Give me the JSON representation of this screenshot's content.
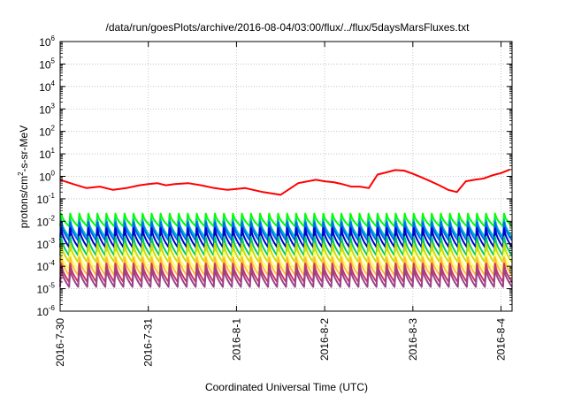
{
  "chart_data": {
    "type": "line",
    "title": "/data/run/goesPlots/archive/2016-08-04/03:00/flux/../flux/5daysMarsFluxes.txt",
    "xlabel": "Coordinated Universal Time (UTC)",
    "ylabel_prefix": "protons/cm",
    "ylabel_sup": "2",
    "ylabel_suffix": "-s-sr-MeV",
    "y_scale": "log",
    "ylim_exponent": [
      -6,
      6
    ],
    "y_tick_base": "10",
    "y_tick_exponents": [
      "-6",
      "-5",
      "-4",
      "-3",
      "-2",
      "-1",
      "0",
      "1",
      "2",
      "3",
      "4",
      "5",
      "6"
    ],
    "xlim": [
      "2016-07-30 00:00",
      "2016-08-04 03:00"
    ],
    "x_ticks": [
      "2016-7-30",
      "2016-7-31",
      "2016-8-1",
      "2016-8-2",
      "2016-8-3",
      "2016-8-4"
    ],
    "grid": true,
    "legend": "none",
    "sawtooth": {
      "teeth": 50,
      "rise_fraction": 0.12
    },
    "series": [
      {
        "color": "#ff0000",
        "style": "piecewise",
        "x_days": [
          0,
          0.15,
          0.3,
          0.45,
          0.6,
          0.75,
          0.9,
          1.0,
          1.1,
          1.2,
          1.3,
          1.45,
          1.6,
          1.75,
          1.9,
          2.1,
          2.3,
          2.5,
          2.7,
          2.9,
          3.0,
          3.1,
          3.2,
          3.3,
          3.4,
          3.5,
          3.6,
          3.7,
          3.8,
          3.9,
          4.0,
          4.1,
          4.2,
          4.3,
          4.4,
          4.5,
          4.6,
          4.7,
          4.8,
          4.9,
          5.0,
          5.1
        ],
        "y": [
          0.7,
          0.45,
          0.3,
          0.35,
          0.25,
          0.3,
          0.4,
          0.45,
          0.5,
          0.4,
          0.45,
          0.5,
          0.4,
          0.3,
          0.25,
          0.3,
          0.2,
          0.15,
          0.5,
          0.7,
          0.6,
          0.55,
          0.45,
          0.35,
          0.35,
          0.3,
          1.2,
          1.5,
          1.9,
          1.8,
          1.3,
          0.9,
          0.6,
          0.4,
          0.25,
          0.2,
          0.6,
          0.7,
          0.8,
          1.1,
          1.4,
          2.0
        ]
      },
      {
        "color": "#00ff00",
        "style": "sawtooth",
        "y_min": 0.006,
        "y_max": 0.022
      },
      {
        "color": "#00bbbb",
        "style": "sawtooth",
        "y_min": 0.002,
        "y_max": 0.012
      },
      {
        "color": "#0066ff",
        "style": "sawtooth",
        "y_min": 0.0014,
        "y_max": 0.009
      },
      {
        "color": "#0000cc",
        "style": "sawtooth",
        "y_min": 0.0007,
        "y_max": 0.005
      },
      {
        "color": "#00cc66",
        "style": "sawtooth",
        "y_min": 0.0003,
        "y_max": 0.002
      },
      {
        "color": "#ccdd00",
        "style": "sawtooth",
        "y_min": 0.00015,
        "y_max": 0.001
      },
      {
        "color": "#ffff66",
        "style": "sawtooth",
        "y_min": 7e-05,
        "y_max": 0.0004
      },
      {
        "color": "#ffbb33",
        "style": "sawtooth",
        "y_min": 4e-05,
        "y_max": 0.00025
      },
      {
        "color": "#cc3366",
        "style": "sawtooth",
        "y_min": 2e-05,
        "y_max": 0.00013
      },
      {
        "color": "#994488",
        "style": "sawtooth",
        "y_min": 1.2e-05,
        "y_max": 8e-05
      }
    ]
  }
}
